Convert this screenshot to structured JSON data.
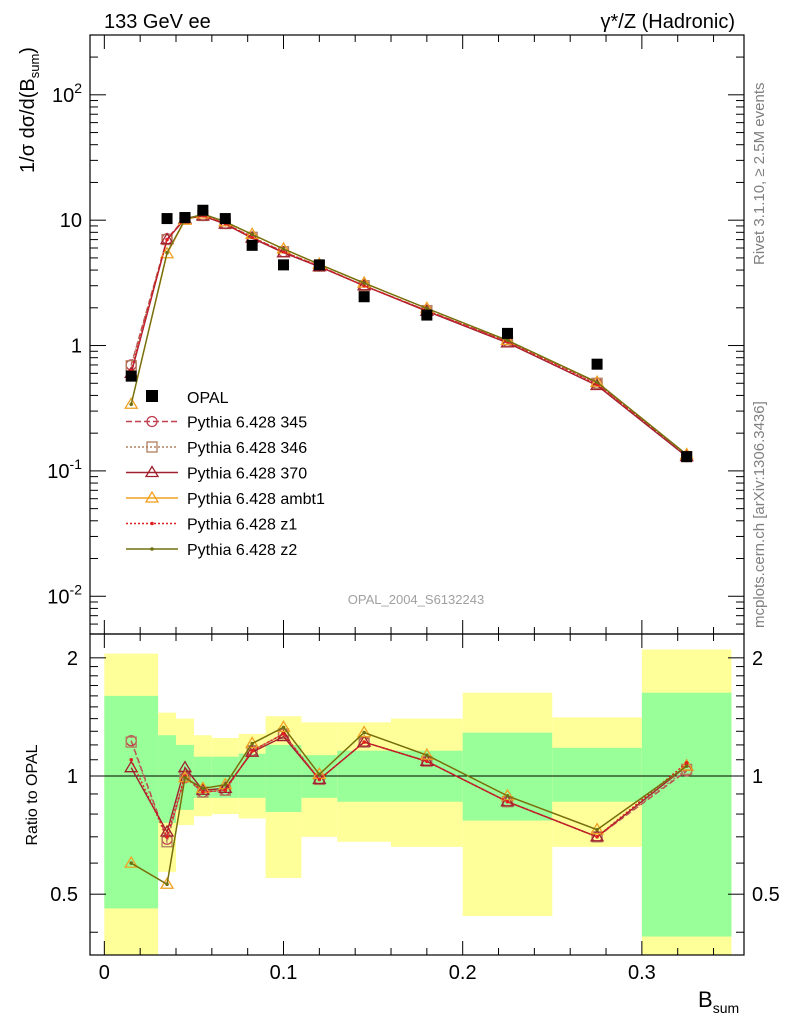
{
  "header": {
    "left": "133 GeV ee",
    "right": "γ*/Z (Hadronic)"
  },
  "side_labels": {
    "rivet": "Rivet 3.1.10, ≥ 2.5M events",
    "mcplots": "mcplots.cern.ch [arXiv:1306.3436]"
  },
  "watermark": "OPAL_2004_S6132243",
  "colors": {
    "opal": "#000000",
    "p345": "#c0404f",
    "p346": "#b08060",
    "p370": "#a02030",
    "ambt1": "#f0a020",
    "z1": "#e02020",
    "z2": "#707010",
    "band_green": "#99ff99",
    "band_yellow": "#ffff99"
  },
  "chart_data": [
    {
      "type": "line",
      "panel": "main",
      "ylabel": "1/σ dσ/d(B_sum)",
      "yscale": "log",
      "ylim": [
        0.005,
        300
      ],
      "xlim": [
        -0.008,
        0.357
      ],
      "y_ticks": [
        {
          "value": 0.01,
          "label": "10^-2"
        },
        {
          "value": 0.1,
          "label": "10^-1"
        },
        {
          "value": 1,
          "label": "1"
        },
        {
          "value": 10,
          "label": "10"
        },
        {
          "value": 100,
          "label": "10^2"
        }
      ],
      "legend_position": "lower-left",
      "data_series": {
        "name": "OPAL",
        "x": [
          0.015,
          0.035,
          0.045,
          0.055,
          0.0675,
          0.0825,
          0.1,
          0.12,
          0.145,
          0.18,
          0.225,
          0.275,
          0.325
        ],
        "y": [
          0.57,
          10.3,
          10.5,
          12.0,
          10.3,
          6.3,
          4.4,
          4.4,
          2.45,
          1.75,
          1.25,
          0.71,
          0.13
        ]
      },
      "series": [
        {
          "name": "Pythia 6.428 345",
          "style": "dashed",
          "marker": "circle-open",
          "color_key": "p345",
          "x": [
            0.015,
            0.035,
            0.045,
            0.055,
            0.0675,
            0.0825,
            0.1,
            0.12,
            0.145,
            0.18,
            0.225,
            0.275,
            0.325
          ],
          "y": [
            0.7,
            7.1,
            10.4,
            10.9,
            9.4,
            7.3,
            5.6,
            4.3,
            3.0,
            1.9,
            1.08,
            0.5,
            0.13
          ]
        },
        {
          "name": "Pythia 6.428 346",
          "style": "dotted",
          "marker": "square-open",
          "color_key": "p346",
          "x": [
            0.015,
            0.035,
            0.045,
            0.055,
            0.0675,
            0.0825,
            0.1,
            0.12,
            0.145,
            0.18,
            0.225,
            0.275,
            0.325
          ],
          "y": [
            0.69,
            7.0,
            10.4,
            10.9,
            9.4,
            7.3,
            5.6,
            4.3,
            3.0,
            1.9,
            1.08,
            0.5,
            0.13
          ]
        },
        {
          "name": "Pythia 6.428 370",
          "style": "solid",
          "marker": "triangle-open",
          "color_key": "p370",
          "x": [
            0.015,
            0.035,
            0.045,
            0.055,
            0.0675,
            0.0825,
            0.1,
            0.12,
            0.145,
            0.18,
            0.225,
            0.275,
            0.325
          ],
          "y": [
            0.6,
            7.0,
            10.2,
            10.8,
            9.3,
            7.2,
            5.5,
            4.25,
            3.0,
            1.88,
            1.05,
            0.48,
            0.13
          ]
        },
        {
          "name": "Pythia 6.428 ambt1",
          "style": "solid",
          "marker": "triangle-open",
          "color_key": "ambt1",
          "x": [
            0.015,
            0.035,
            0.045,
            0.055,
            0.0675,
            0.0825,
            0.1,
            0.12,
            0.145,
            0.18,
            0.225,
            0.275,
            0.325
          ],
          "y": [
            0.34,
            5.4,
            10.0,
            11.2,
            9.7,
            7.7,
            5.9,
            4.45,
            3.15,
            1.98,
            1.1,
            0.51,
            0.135
          ]
        },
        {
          "name": "Pythia 6.428 z1",
          "style": "dotted",
          "marker": "dot",
          "color_key": "z1",
          "x": [
            0.015,
            0.035,
            0.045,
            0.055,
            0.0675,
            0.0825,
            0.1,
            0.12,
            0.145,
            0.18,
            0.225,
            0.275,
            0.325
          ],
          "y": [
            0.63,
            7.0,
            10.3,
            10.9,
            9.4,
            7.3,
            5.6,
            4.3,
            3.0,
            1.9,
            1.07,
            0.49,
            0.135
          ]
        },
        {
          "name": "Pythia 6.428 z2",
          "style": "solid",
          "marker": "dot",
          "color_key": "z2",
          "x": [
            0.015,
            0.035,
            0.045,
            0.055,
            0.0675,
            0.0825,
            0.1,
            0.12,
            0.145,
            0.18,
            0.225,
            0.275,
            0.325
          ],
          "y": [
            0.34,
            5.5,
            10.1,
            11.2,
            9.7,
            7.7,
            5.9,
            4.45,
            3.15,
            1.98,
            1.1,
            0.51,
            0.135
          ]
        }
      ]
    },
    {
      "type": "line",
      "panel": "ratio",
      "ylabel": "Ratio to OPAL",
      "xlabel": "B_sum",
      "yscale": "log",
      "ylim": [
        0.35,
        2.3
      ],
      "xlim": [
        -0.008,
        0.357
      ],
      "x_ticks": [
        {
          "value": 0,
          "label": "0"
        },
        {
          "value": 0.1,
          "label": "0.1"
        },
        {
          "value": 0.2,
          "label": "0.2"
        },
        {
          "value": 0.3,
          "label": "0.3"
        }
      ],
      "y_ticks": [
        {
          "value": 0.5,
          "label": "0.5"
        },
        {
          "value": 1,
          "label": "1"
        },
        {
          "value": 2,
          "label": "2"
        }
      ],
      "bands": [
        {
          "x0": 0.0,
          "x1": 0.03,
          "green": [
            0.46,
            1.6
          ],
          "yellow": [
            0.3,
            2.05
          ]
        },
        {
          "x0": 0.03,
          "x1": 0.04,
          "green": [
            0.76,
            1.27
          ],
          "yellow": [
            0.57,
            1.45
          ]
        },
        {
          "x0": 0.04,
          "x1": 0.05,
          "green": [
            0.82,
            1.2
          ],
          "yellow": [
            0.75,
            1.4
          ]
        },
        {
          "x0": 0.05,
          "x1": 0.06,
          "green": [
            0.88,
            1.12
          ],
          "yellow": [
            0.79,
            1.27
          ]
        },
        {
          "x0": 0.06,
          "x1": 0.075,
          "green": [
            0.88,
            1.12
          ],
          "yellow": [
            0.8,
            1.25
          ]
        },
        {
          "x0": 0.075,
          "x1": 0.09,
          "green": [
            0.88,
            1.14
          ],
          "yellow": [
            0.78,
            1.28
          ]
        },
        {
          "x0": 0.09,
          "x1": 0.11,
          "green": [
            0.81,
            1.2
          ],
          "yellow": [
            0.55,
            1.42
          ]
        },
        {
          "x0": 0.11,
          "x1": 0.13,
          "green": [
            0.88,
            1.13
          ],
          "yellow": [
            0.7,
            1.37
          ]
        },
        {
          "x0": 0.13,
          "x1": 0.16,
          "green": [
            0.86,
            1.16
          ],
          "yellow": [
            0.68,
            1.37
          ]
        },
        {
          "x0": 0.16,
          "x1": 0.2,
          "green": [
            0.86,
            1.16
          ],
          "yellow": [
            0.66,
            1.4
          ]
        },
        {
          "x0": 0.2,
          "x1": 0.25,
          "green": [
            0.77,
            1.29
          ],
          "yellow": [
            0.44,
            1.63
          ]
        },
        {
          "x0": 0.25,
          "x1": 0.3,
          "green": [
            0.86,
            1.18
          ],
          "yellow": [
            0.66,
            1.41
          ]
        },
        {
          "x0": 0.3,
          "x1": 0.35,
          "green": [
            0.39,
            1.63
          ],
          "yellow": [
            0.33,
            2.1
          ]
        }
      ],
      "x": [
        0.015,
        0.035,
        0.045,
        0.055,
        0.0675,
        0.0825,
        0.1,
        0.12,
        0.145,
        0.18,
        0.225,
        0.275,
        0.325
      ],
      "series": [
        {
          "name": "Pythia 6.428 345",
          "color_key": "p345",
          "style": "dashed",
          "marker": "circle-open",
          "y": [
            1.23,
            0.69,
            0.99,
            0.91,
            0.92,
            1.16,
            1.28,
            0.98,
            1.22,
            1.09,
            0.86,
            0.7,
            1.03
          ]
        },
        {
          "name": "Pythia 6.428 346",
          "color_key": "p346",
          "style": "dotted",
          "marker": "square-open",
          "y": [
            1.22,
            0.68,
            1.0,
            0.91,
            0.92,
            1.16,
            1.28,
            0.98,
            1.22,
            1.09,
            0.86,
            0.7,
            1.04
          ]
        },
        {
          "name": "Pythia 6.428 370",
          "color_key": "p370",
          "style": "solid",
          "marker": "triangle-open",
          "y": [
            1.05,
            0.72,
            1.05,
            0.92,
            0.93,
            1.15,
            1.26,
            0.98,
            1.22,
            1.09,
            0.86,
            0.7,
            1.06
          ]
        },
        {
          "name": "Pythia 6.428 ambt1",
          "color_key": "ambt1",
          "style": "solid",
          "marker": "triangle-open",
          "y": [
            0.6,
            0.53,
            0.99,
            0.93,
            0.95,
            1.21,
            1.33,
            1.01,
            1.29,
            1.13,
            0.89,
            0.73,
            1.06
          ]
        },
        {
          "name": "Pythia 6.428 z1",
          "color_key": "z1",
          "style": "dotted",
          "marker": "dot",
          "y": [
            1.1,
            0.7,
            1.0,
            0.91,
            0.92,
            1.16,
            1.28,
            0.98,
            1.22,
            1.09,
            0.86,
            0.7,
            1.08
          ]
        },
        {
          "name": "Pythia 6.428 z2",
          "color_key": "z2",
          "style": "solid",
          "marker": "dot",
          "y": [
            0.6,
            0.53,
            0.99,
            0.93,
            0.95,
            1.21,
            1.33,
            1.01,
            1.29,
            1.13,
            0.89,
            0.73,
            1.06
          ]
        }
      ]
    }
  ]
}
